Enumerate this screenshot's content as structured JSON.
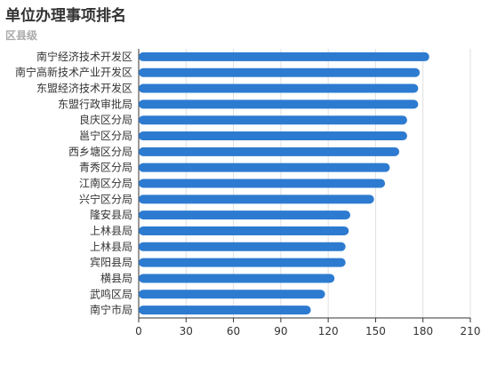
{
  "chart_data": {
    "type": "bar",
    "orientation": "horizontal",
    "title": "单位办理事项排名",
    "subtitle": "区县级",
    "categories": [
      "南宁经济技术开发区",
      "南宁高新技术产业开发区",
      "东盟经济技术开发区",
      "东盟行政审批局",
      "良庆区分局",
      "邕宁区分局",
      "西乡塘区分局",
      "青秀区分局",
      "江南区分局",
      "兴宁区分局",
      "隆安县局",
      "上林县局",
      "上林县局",
      "宾阳县局",
      "横县局",
      "武鸣区局",
      "南宁市局"
    ],
    "values": [
      184,
      178,
      177,
      177,
      170,
      170,
      165,
      159,
      156,
      149,
      134,
      133,
      131,
      131,
      124,
      118,
      109
    ],
    "xlim": [
      0,
      210
    ],
    "xticks": [
      0,
      30,
      60,
      90,
      120,
      150,
      180,
      210
    ],
    "grid": true,
    "bar_color": "#2d7bd0"
  }
}
